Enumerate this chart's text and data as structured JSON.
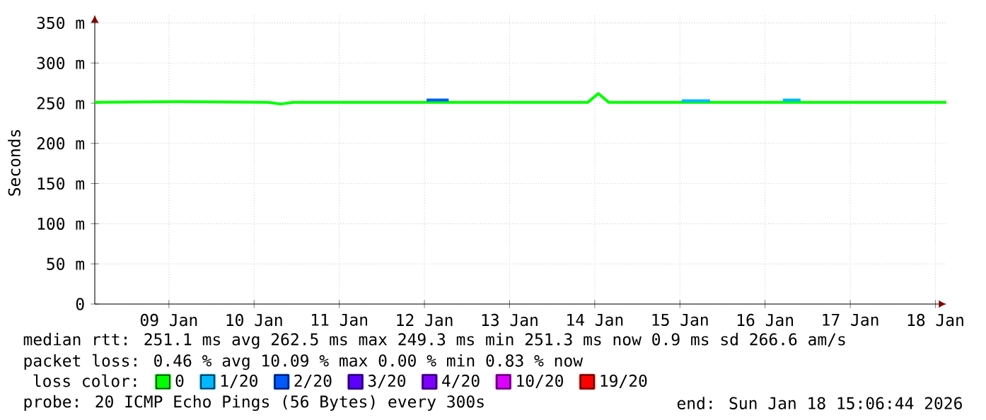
{
  "chart_data": {
    "type": "line",
    "ylabel": "Seconds",
    "legend_title": "loss color:",
    "legend": "bottom",
    "grid": true,
    "marker": "none",
    "line_style": "solid",
    "xlim": [
      "2026-01-08T15:06",
      "2026-01-18T15:06"
    ],
    "xticks": [
      {
        "value": "2026-01-09T12:00",
        "label": "09 Jan"
      },
      {
        "value": "2026-01-10T12:00",
        "label": "10 Jan"
      },
      {
        "value": "2026-01-11T12:00",
        "label": "11 Jan"
      },
      {
        "value": "2026-01-12T12:00",
        "label": "12 Jan"
      },
      {
        "value": "2026-01-13T12:00",
        "label": "13 Jan"
      },
      {
        "value": "2026-01-14T12:00",
        "label": "14 Jan"
      },
      {
        "value": "2026-01-15T12:00",
        "label": "15 Jan"
      },
      {
        "value": "2026-01-16T12:00",
        "label": "16 Jan"
      },
      {
        "value": "2026-01-17T12:00",
        "label": "17 Jan"
      },
      {
        "value": "2026-01-18T12:00",
        "label": "18 Jan"
      }
    ],
    "ylim": [
      0,
      360
    ],
    "yticks": [
      0,
      {
        "value": 50,
        "label": "50 m"
      },
      {
        "value": 100,
        "label": "100 m"
      },
      {
        "value": 150,
        "label": "150 m"
      },
      {
        "value": 200,
        "label": "200 m"
      },
      {
        "value": 250,
        "label": "250 m"
      },
      {
        "value": 300,
        "label": "300 m"
      },
      {
        "value": 350,
        "label": "350 m"
      }
    ],
    "series": [
      {
        "name": "0",
        "color": "#00ff00",
        "x": [
          "2026-01-08T15:06",
          "2026-01-09T14:00",
          "2026-01-10T16:00",
          "2026-01-10T19:30",
          "2026-01-10T23:00",
          "2026-01-12T12:00",
          "2026-01-14T10:00",
          "2026-01-14T13:00",
          "2026-01-14T16:00",
          "2026-01-16T08:00",
          "2026-01-18T15:06"
        ],
        "values": [
          251,
          252,
          251,
          249,
          251,
          251,
          251,
          262,
          251,
          251,
          251
        ]
      },
      {
        "name": "1/20",
        "color": "#00b8ff",
        "x": [
          "2026-01-15T12:30",
          "2026-01-15T20:30",
          "2026-01-16T00:00",
          "2026-01-16T17:00",
          "2026-01-16T22:00"
        ],
        "values": [
          253,
          253,
          null,
          254,
          254
        ]
      },
      {
        "name": "2/20",
        "color": "#0059ff",
        "x": [
          "2026-01-12T12:36",
          "2026-01-12T18:50"
        ],
        "values": [
          254,
          254
        ]
      },
      {
        "name": "3/20",
        "color": "#5e00ff"
      },
      {
        "name": "4/20",
        "color": "#7e00ff"
      },
      {
        "name": "10/20",
        "color": "#dd00ff"
      },
      {
        "name": "19/20",
        "color": "#ff0000"
      }
    ],
    "annotations": [
      "median rtt: 251.1 ms avg 262.5 ms max 249.3 ms min 251.3 ms now 0.9 ms sd 266.6 am/s",
      "packet loss: 0.46 % avg 10.09 % max 0.00 % min 0.83 % now",
      "probe: 20 ICMP Echo Pings (56 Bytes) every 300s",
      "end: Sun Jan 18 15:06:44 2026"
    ]
  }
}
